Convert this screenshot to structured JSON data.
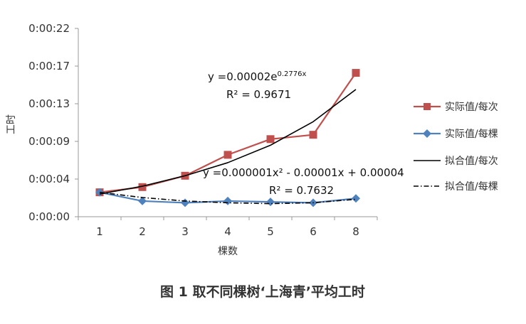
{
  "chart_data": {
    "type": "line",
    "xlabel": "棵数",
    "ylabel": "工时",
    "categories": [
      "1",
      "2",
      "3",
      "4",
      "5",
      "6",
      "8"
    ],
    "y_tick_labels": [
      "0:00:00",
      "0:00:04",
      "0:00:09",
      "0:00:13",
      "0:00:17",
      "0:00:22"
    ],
    "ylim_seconds": [
      0,
      21.6
    ],
    "grid": false,
    "legend_position": "right",
    "series": [
      {
        "name": "实际值/每次",
        "values_seconds": [
          2.8,
          3.4,
          4.7,
          7.1,
          8.9,
          9.4,
          16.5
        ],
        "color": "#c0504d",
        "marker": "square",
        "line": "solid"
      },
      {
        "name": "实际值/每棵",
        "values_seconds": [
          2.8,
          1.8,
          1.6,
          1.8,
          1.7,
          1.6,
          2.1
        ],
        "color": "#4f81bd",
        "marker": "diamond",
        "line": "solid"
      },
      {
        "name": "拟合值/每次",
        "values_seconds": [
          2.6,
          3.5,
          4.7,
          6.2,
          8.2,
          10.9,
          14.6
        ],
        "color": "#000000",
        "marker": "none",
        "line": "solid"
      },
      {
        "name": "拟合值/每棵",
        "values_seconds": [
          2.8,
          2.2,
          1.8,
          1.6,
          1.5,
          1.6,
          2.0
        ],
        "color": "#000000",
        "marker": "none",
        "line": "dashdot"
      }
    ],
    "annotations": {
      "exp_fit": {
        "equation_prefix": "y =0.00002e",
        "equation_exponent": "0.2776x",
        "r2": "R² = 0.9671"
      },
      "poly_fit": {
        "equation": "y =0.000001x² - 0.00001x + 0.00004",
        "r2": "R² = 0.7632"
      }
    }
  },
  "caption": "图 1 取不同棵树‘上海青’平均工时"
}
